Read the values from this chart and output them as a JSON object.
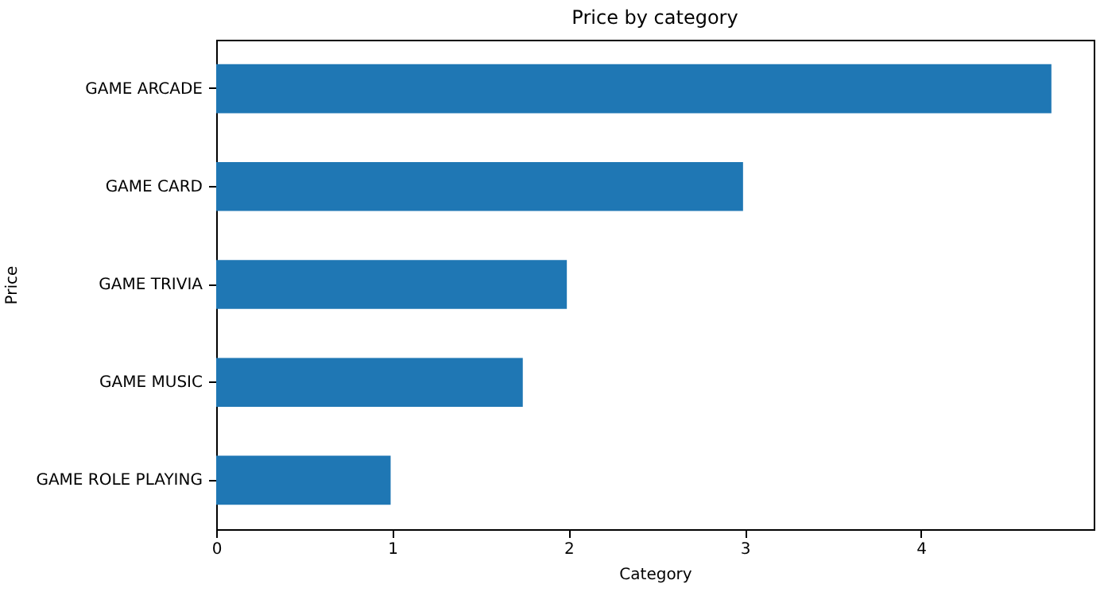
{
  "chart_data": {
    "type": "bar",
    "orientation": "horizontal",
    "title": "Price by category",
    "xlabel": "Category",
    "ylabel": "Price",
    "categories": [
      "GAME ARCADE",
      "GAME CARD",
      "GAME TRIVIA",
      "GAME MUSIC",
      "GAME ROLE PLAYING"
    ],
    "values": [
      4.74,
      2.99,
      1.99,
      1.74,
      0.99
    ],
    "color": "#1f77b4",
    "xlim": [
      0,
      4.98
    ],
    "xticks": [
      0,
      1,
      2,
      3,
      4
    ],
    "grid": false
  }
}
